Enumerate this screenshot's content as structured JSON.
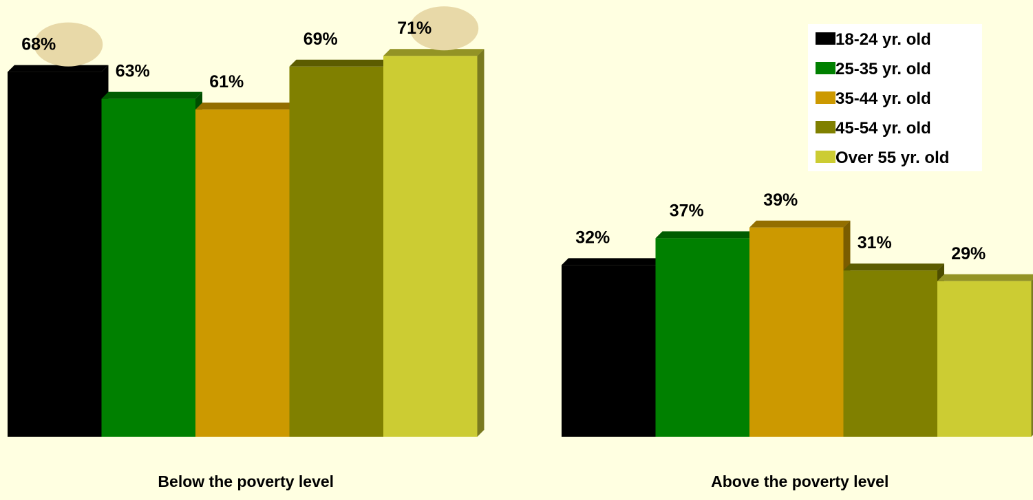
{
  "chart_data": {
    "type": "bar",
    "categories": [
      "Below the poverty level",
      "Above the poverty level"
    ],
    "series": [
      {
        "name": "18-24 yr. old",
        "values": [
          68,
          32
        ],
        "color": "#000000"
      },
      {
        "name": "25-35 yr. old",
        "values": [
          63,
          37
        ],
        "color": "#008000"
      },
      {
        "name": "35-44 yr. old",
        "values": [
          61,
          39
        ],
        "color": "#CC9900"
      },
      {
        "name": "45-54 yr. old",
        "values": [
          69,
          31
        ],
        "color": "#808000"
      },
      {
        "name": "Over 55 yr. old",
        "values": [
          71,
          29
        ],
        "color": "#CCCC33"
      }
    ],
    "value_suffix": "%",
    "highlighted_labels": [
      {
        "category": "Below the poverty level",
        "series": "18-24 yr. old"
      },
      {
        "category": "Below the poverty level",
        "series": "Over 55 yr. old"
      }
    ],
    "highlight_color": "#E8D9A8",
    "background_color": "#FFFFE1",
    "legend_background": "#FFFFFF",
    "legend_position": "top-right",
    "ylim": [
      0,
      100
    ],
    "grid": false,
    "bar_style": "3d"
  }
}
